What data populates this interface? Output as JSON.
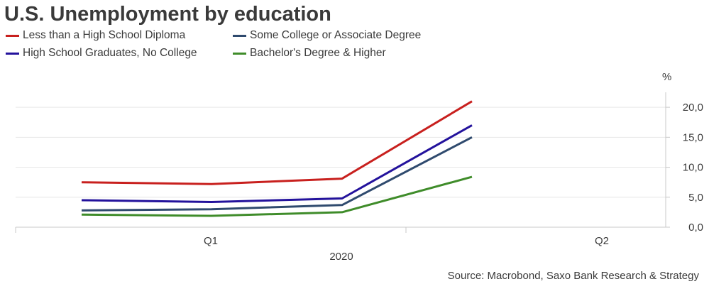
{
  "chart_data": {
    "type": "line",
    "title": "U.S. Unemployment by education",
    "source": "Source: Macrobond, Saxo Bank Research & Strategy",
    "y_unit": "%",
    "x_ticks": [
      "Q1",
      "Q2"
    ],
    "x_year": "2020",
    "x": [
      "2020-01",
      "2020-02",
      "2020-03",
      "2020-04"
    ],
    "ylim": [
      0,
      22.5
    ],
    "y_ticks": [
      "0,0",
      "5,0",
      "10,0",
      "15,0",
      "20,0"
    ],
    "y_tick_values": [
      0,
      5,
      10,
      15,
      20
    ],
    "grid": true,
    "legend_position": "top-left",
    "series": [
      {
        "name": "Less than a High School Diploma",
        "color": "#c8201e",
        "values": [
          7.5,
          7.2,
          8.1,
          21.0
        ]
      },
      {
        "name": "High School Graduates, No College",
        "color": "#23129c",
        "values": [
          4.5,
          4.2,
          4.8,
          17.0
        ]
      },
      {
        "name": "Some College or Associate Degree",
        "color": "#2f4a6e",
        "values": [
          2.8,
          3.0,
          3.7,
          15.0
        ]
      },
      {
        "name": "Bachelor's Degree & Higher",
        "color": "#3f8c2a",
        "values": [
          2.1,
          1.9,
          2.5,
          8.4
        ]
      }
    ]
  }
}
